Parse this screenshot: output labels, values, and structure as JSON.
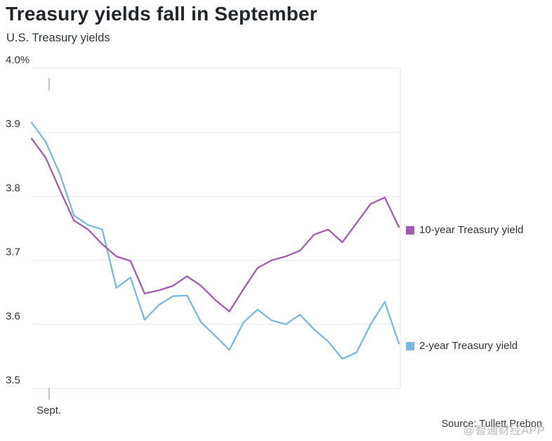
{
  "source": "Source: Tullett Prebon",
  "watermark": "@智通财经APP",
  "chart_data": {
    "type": "line",
    "title": "Treasury yields fall in September",
    "subtitle": "U.S. Treasury yields",
    "x_axis_label": "Sept.",
    "ylim": [
      3.5,
      4.0
    ],
    "grid": "horizontal",
    "legend_position": "right",
    "y_ticks": [
      {
        "value": 4.0,
        "label": "4.0%"
      },
      {
        "value": 3.9,
        "label": "3.9"
      },
      {
        "value": 3.8,
        "label": "3.8"
      },
      {
        "value": 3.7,
        "label": "3.7"
      },
      {
        "value": 3.6,
        "label": "3.6"
      },
      {
        "value": 3.5,
        "label": "3.5"
      }
    ],
    "series": [
      {
        "name": "10-year Treasury yield",
        "color": "#a25cb4",
        "values": [
          3.89,
          3.86,
          3.81,
          3.762,
          3.748,
          3.725,
          3.706,
          3.699,
          3.648,
          3.653,
          3.66,
          3.675,
          3.66,
          3.638,
          3.62,
          3.655,
          3.688,
          3.7,
          3.706,
          3.715,
          3.74,
          3.748,
          3.728,
          3.758,
          3.788,
          3.798,
          3.752
        ]
      },
      {
        "name": "2-year Treasury yield",
        "color": "#79b8e4",
        "values": [
          3.915,
          3.885,
          3.835,
          3.77,
          3.755,
          3.748,
          3.657,
          3.673,
          3.607,
          3.63,
          3.644,
          3.645,
          3.603,
          3.582,
          3.56,
          3.603,
          3.623,
          3.606,
          3.6,
          3.615,
          3.592,
          3.573,
          3.546,
          3.556,
          3.6,
          3.635,
          3.57
        ]
      }
    ]
  }
}
